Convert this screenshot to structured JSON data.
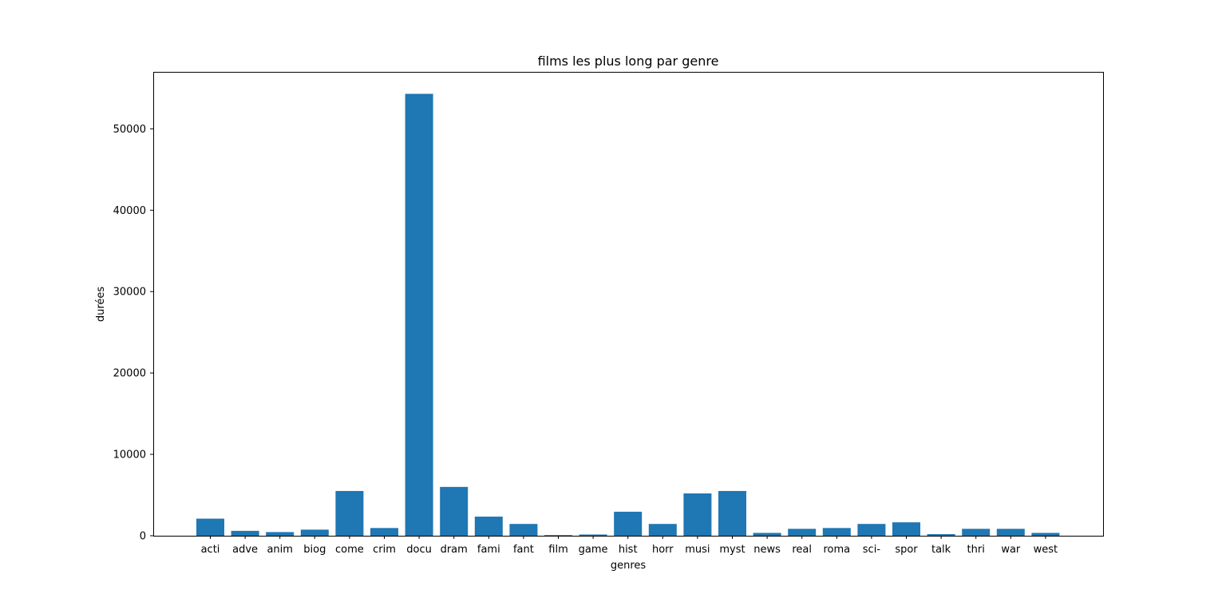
{
  "chart_data": {
    "type": "bar",
    "title": "films les plus long par genre",
    "xlabel": "genres",
    "ylabel": "durées",
    "categories": [
      "acti",
      "adve",
      "anim",
      "biog",
      "come",
      "crim",
      "docu",
      "dram",
      "fami",
      "fant",
      "film",
      "game",
      "hist",
      "horr",
      "musi",
      "myst",
      "news",
      "real",
      "roma",
      "sci-",
      "spor",
      "talk",
      "thri",
      "war",
      "west"
    ],
    "values": [
      2100,
      600,
      450,
      750,
      5500,
      950,
      54300,
      6000,
      2350,
      1450,
      80,
      150,
      2950,
      1450,
      5200,
      5500,
      350,
      850,
      950,
      1450,
      1650,
      200,
      850,
      850,
      350
    ],
    "ylim": [
      0,
      57000
    ],
    "yticks": [
      0,
      10000,
      20000,
      30000,
      40000,
      50000
    ],
    "grid": false,
    "colors": {
      "bar": "#1f77b4",
      "axis": "#000000",
      "background": "#ffffff"
    }
  }
}
